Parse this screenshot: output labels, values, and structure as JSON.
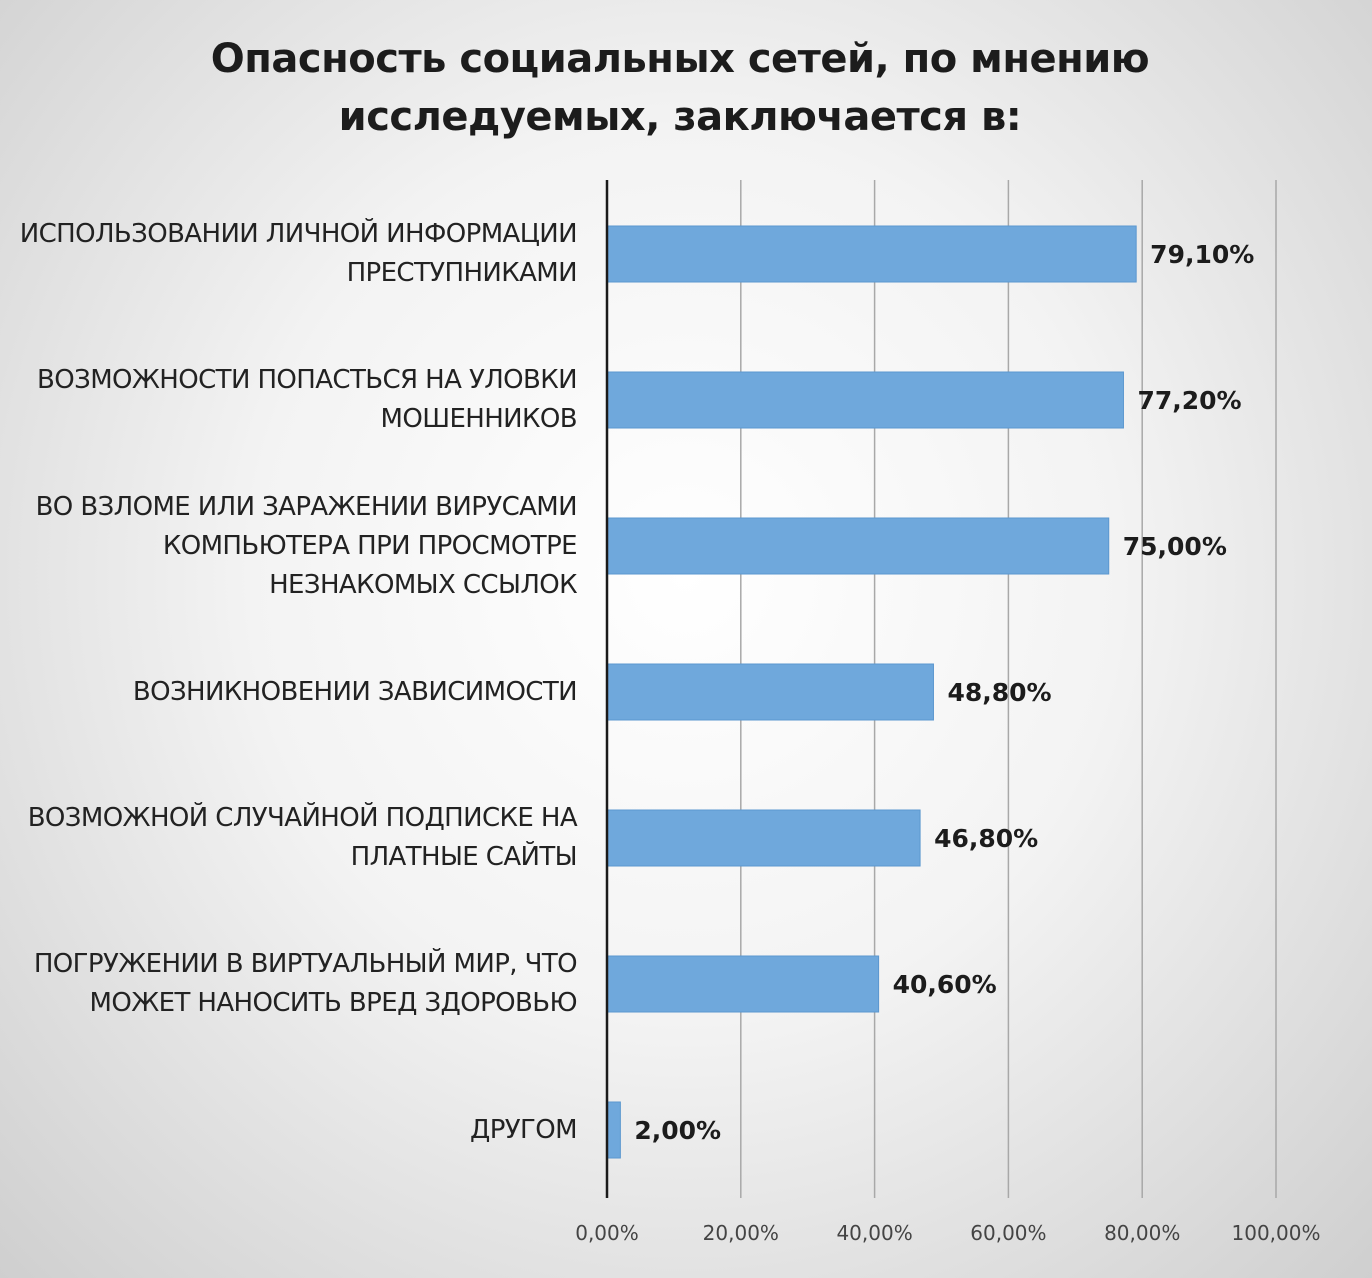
{
  "chart_data": {
    "type": "bar",
    "orientation": "horizontal",
    "title": "Опасность социальных сетей, по мнению исследуемых, заключается в:",
    "categories": [
      "ИСПОЛЬЗОВАНИИ ЛИЧНОЙ ИНФОРМАЦИИ ПРЕСТУПНИКАМИ",
      "ВОЗМОЖНОСТИ ПОПАСТЬСЯ НА УЛОВКИ МОШЕННИКОВ",
      "ВО ВЗЛОМЕ ИЛИ ЗАРАЖЕНИИ ВИРУСАМИ КОМПЬЮТЕРА ПРИ ПРОСМОТРЕ НЕЗНАКОМЫХ ССЫЛОК",
      "ВОЗНИКНОВЕНИИ ЗАВИСИМОСТИ",
      "ВОЗМОЖНОЙ СЛУЧАЙНОЙ ПОДПИСКЕ НА ПЛАТНЫЕ САЙТЫ",
      "ПОГРУЖЕНИИ В ВИРТУАЛЬНЫЙ МИР, ЧТО МОЖЕТ НАНОСИТЬ ВРЕД ЗДОРОВЬЮ",
      "ДРУГОМ"
    ],
    "values": [
      79.1,
      77.2,
      75.0,
      48.8,
      46.8,
      40.6,
      2.0
    ],
    "data_labels": [
      "79,10%",
      "77,20%",
      "75,00%",
      "48,80%",
      "46,80%",
      "40,60%",
      "2,00%"
    ],
    "xlim": [
      0,
      100
    ],
    "ticks": [
      0,
      20,
      40,
      60,
      80,
      100
    ],
    "tick_labels": [
      "0,00%",
      "20,00%",
      "40,00%",
      "60,00%",
      "80,00%",
      "100,00%"
    ],
    "grid": true,
    "legend": "none",
    "colors": {
      "bar": "#6fa8dc",
      "bar_edge": "#5b97cf",
      "grid": "#a8a8a8",
      "axis": "#1a1a1a",
      "text": "#222222"
    }
  }
}
